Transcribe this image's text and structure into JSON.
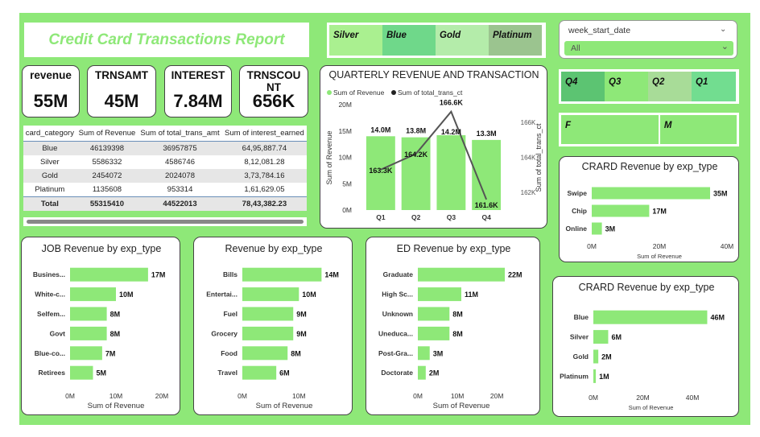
{
  "report": {
    "title": "Credit Card Transactions Report"
  },
  "colors": {
    "bar": "#8ee878",
    "bg": "#8ee878",
    "line": "#555555",
    "dark": "#111111"
  },
  "kpis": [
    {
      "label": "revenue",
      "value": "55M"
    },
    {
      "label": "TRNSAMT",
      "value": "45M"
    },
    {
      "label": "INTEREST",
      "value": "7.84M"
    },
    {
      "label": "TRNSCOUNT",
      "value": "656K"
    }
  ],
  "card_slicer": {
    "items": [
      "Silver",
      "Blue",
      "Gold",
      "Platinum"
    ]
  },
  "week_slicer": {
    "label": "week_start_date",
    "value": "All"
  },
  "quarter_slicer": {
    "items": [
      "Q4",
      "Q3",
      "Q2",
      "Q1"
    ]
  },
  "gender_slicer": {
    "items": [
      "F",
      "M"
    ]
  },
  "matrix": {
    "headers": [
      "card_category",
      "Sum of Revenue",
      "Sum of total_trans_amt",
      "Sum of interest_earned"
    ],
    "rows": [
      [
        "Blue",
        "46139398",
        "36957875",
        "64,95,887.74"
      ],
      [
        "Silver",
        "5586332",
        "4586746",
        "8,12,081.28"
      ],
      [
        "Gold",
        "2454072",
        "2024078",
        "3,73,784.16"
      ],
      [
        "Platinum",
        "1135608",
        "953314",
        "1,61,629.05"
      ]
    ],
    "total": [
      "Total",
      "55315410",
      "44522013",
      "78,43,382.23"
    ]
  },
  "chart_data": [
    {
      "id": "quarterly",
      "type": "bar",
      "title": "QUARTERLY REVENUE AND TRANSACTION",
      "legend": [
        "Sum of Revenue",
        "Sum of total_trans_ct"
      ],
      "categories": [
        "Q1",
        "Q2",
        "Q3",
        "Q4"
      ],
      "series": [
        {
          "name": "Sum of Revenue",
          "values": [
            14.0,
            13.8,
            14.2,
            13.3
          ],
          "labels": [
            "14.0M",
            "13.8M",
            "14.2M",
            "13.3M"
          ]
        },
        {
          "name": "Sum of total_trans_ct",
          "values": [
            163.3,
            164.2,
            166.6,
            161.6
          ],
          "labels": [
            "163.3K",
            "164.2K",
            "166.6K",
            "161.6K"
          ]
        }
      ],
      "ylabel": "Sum of Revenue",
      "y2label": "Sum of total_trans_ct",
      "ylim": [
        0,
        20
      ],
      "y2lim": [
        161,
        167
      ],
      "yticks": [
        "0M",
        "5M",
        "10M",
        "15M",
        "20M"
      ],
      "yticks_values": [
        0,
        5,
        10,
        15,
        20
      ],
      "y2ticks": [
        "162K",
        "164K",
        "166K"
      ],
      "y2ticks_values": [
        162,
        164,
        166
      ]
    },
    {
      "id": "card_exp",
      "type": "bar",
      "title": "CRARD Revenue by exp_type",
      "categories": [
        "Swipe",
        "Chip",
        "Online"
      ],
      "values": [
        35,
        17,
        3
      ],
      "labels": [
        "35M",
        "17M",
        "3M"
      ],
      "xlabel": "Sum of Revenue",
      "xlim": [
        0,
        40
      ],
      "xticks": [
        "0M",
        "20M",
        "40M"
      ],
      "xticks_values": [
        0,
        20,
        40
      ]
    },
    {
      "id": "job",
      "type": "bar",
      "title": "JOB Revenue by exp_type",
      "categories": [
        "Busines...",
        "White-c...",
        "Selfem...",
        "Govt",
        "Blue-co...",
        "Retirees"
      ],
      "values": [
        17,
        10,
        8,
        8,
        7,
        5
      ],
      "labels": [
        "17M",
        "10M",
        "8M",
        "8M",
        "7M",
        "5M"
      ],
      "xlabel": "Sum of Revenue",
      "xlim": [
        0,
        20
      ],
      "xticks": [
        "0M",
        "10M",
        "20M"
      ],
      "xticks_values": [
        0,
        10,
        20
      ]
    },
    {
      "id": "rev_exp",
      "type": "bar",
      "title": "Revenue by exp_type",
      "categories": [
        "Bills",
        "Entertai...",
        "Fuel",
        "Grocery",
        "Food",
        "Travel"
      ],
      "values": [
        14,
        10,
        9,
        9,
        8,
        6
      ],
      "labels": [
        "14M",
        "10M",
        "9M",
        "9M",
        "8M",
        "6M"
      ],
      "xlabel": "Sum of Revenue",
      "xlim": [
        0,
        14.8
      ],
      "xticks": [
        "0M",
        "10M"
      ],
      "xticks_values": [
        0,
        10
      ]
    },
    {
      "id": "ed",
      "type": "bar",
      "title": "ED Revenue by exp_type",
      "categories": [
        "Graduate",
        "High Sc...",
        "Unknown",
        "Uneduca...",
        "Post-Gra...",
        "Doctorate"
      ],
      "values": [
        22,
        11,
        8,
        8,
        3,
        2
      ],
      "labels": [
        "22M",
        "11M",
        "8M",
        "8M",
        "3M",
        "2M"
      ],
      "xlabel": "Sum of Revenue",
      "xlim": [
        0,
        22
      ],
      "xticks": [
        "0M",
        "10M",
        "20M"
      ],
      "xticks_values": [
        0,
        10,
        20
      ]
    },
    {
      "id": "card_cat",
      "type": "bar",
      "title": "CRARD Revenue by exp_type",
      "categories": [
        "Blue",
        "Silver",
        "Gold",
        "Platinum"
      ],
      "values": [
        46,
        6,
        2,
        1
      ],
      "labels": [
        "46M",
        "6M",
        "2M",
        "1M"
      ],
      "xlabel": "Sum of Revenue",
      "xlim": [
        0,
        46.5
      ],
      "xticks": [
        "0M",
        "20M",
        "40M"
      ],
      "xticks_values": [
        0,
        20,
        40
      ]
    }
  ]
}
